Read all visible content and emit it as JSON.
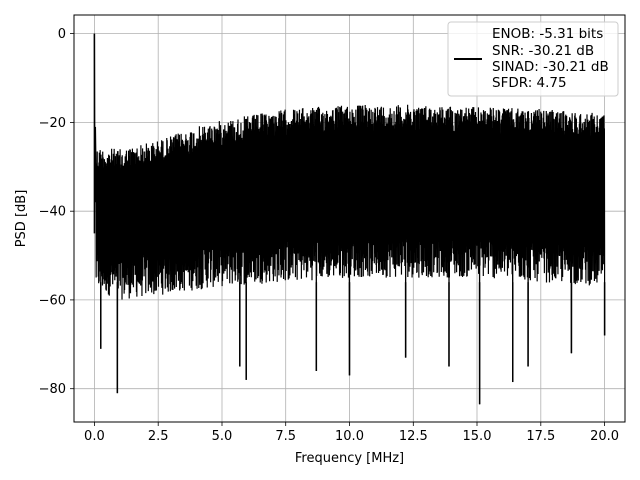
{
  "chart_data": {
    "type": "line",
    "title": "",
    "xlabel": "Frequency [MHz]",
    "ylabel": "PSD [dB]",
    "xlim": [
      -0.8,
      20.8
    ],
    "ylim": [
      -87.5,
      4.2
    ],
    "xticks": [
      0.0,
      2.5,
      5.0,
      7.5,
      10.0,
      12.5,
      15.0,
      17.5,
      20.0
    ],
    "xtick_labels": [
      "0.0",
      "2.5",
      "5.0",
      "7.5",
      "10.0",
      "12.5",
      "15.0",
      "17.5",
      "20.0"
    ],
    "yticks": [
      0,
      -20,
      -40,
      -60,
      -80
    ],
    "ytick_labels": [
      "0",
      "−20",
      "−40",
      "−60",
      "−80"
    ],
    "grid": true,
    "legend_position": "top-right",
    "legend": [
      "ENOB: -5.31 bits",
      "SNR: -30.21 dB",
      "SINAD: -30.21 dB",
      "SFDR: 4.75"
    ],
    "series": [
      {
        "color": "#000000",
        "frequency_range_mhz": [
          0,
          20
        ],
        "peak": {
          "x": 0.0,
          "y": 0.0
        },
        "upper_envelope": [
          [
            0.1,
            -25.5
          ],
          [
            1,
            -26
          ],
          [
            2.5,
            -24
          ],
          [
            4,
            -21
          ],
          [
            5,
            -19.5
          ],
          [
            7.5,
            -17
          ],
          [
            10,
            -16
          ],
          [
            12.5,
            -16
          ],
          [
            15,
            -16.5
          ],
          [
            17.5,
            -17
          ],
          [
            20,
            -18
          ]
        ],
        "lower_envelope": [
          [
            0.1,
            -58
          ],
          [
            1,
            -60
          ],
          [
            2.5,
            -59
          ],
          [
            5,
            -57
          ],
          [
            7.5,
            -56
          ],
          [
            10,
            -55
          ],
          [
            12.5,
            -55
          ],
          [
            15,
            -55
          ],
          [
            17.5,
            -56
          ],
          [
            20,
            -57
          ]
        ],
        "deep_nulls": [
          [
            0.25,
            -71
          ],
          [
            0.9,
            -81
          ],
          [
            5.7,
            -75
          ],
          [
            5.95,
            -78
          ],
          [
            8.7,
            -76
          ],
          [
            10,
            -77
          ],
          [
            12.2,
            -73
          ],
          [
            13.9,
            -75
          ],
          [
            15.1,
            -83.5
          ],
          [
            16.4,
            -78.5
          ],
          [
            17,
            -75
          ],
          [
            18.7,
            -72
          ],
          [
            20,
            -68
          ]
        ]
      }
    ]
  }
}
